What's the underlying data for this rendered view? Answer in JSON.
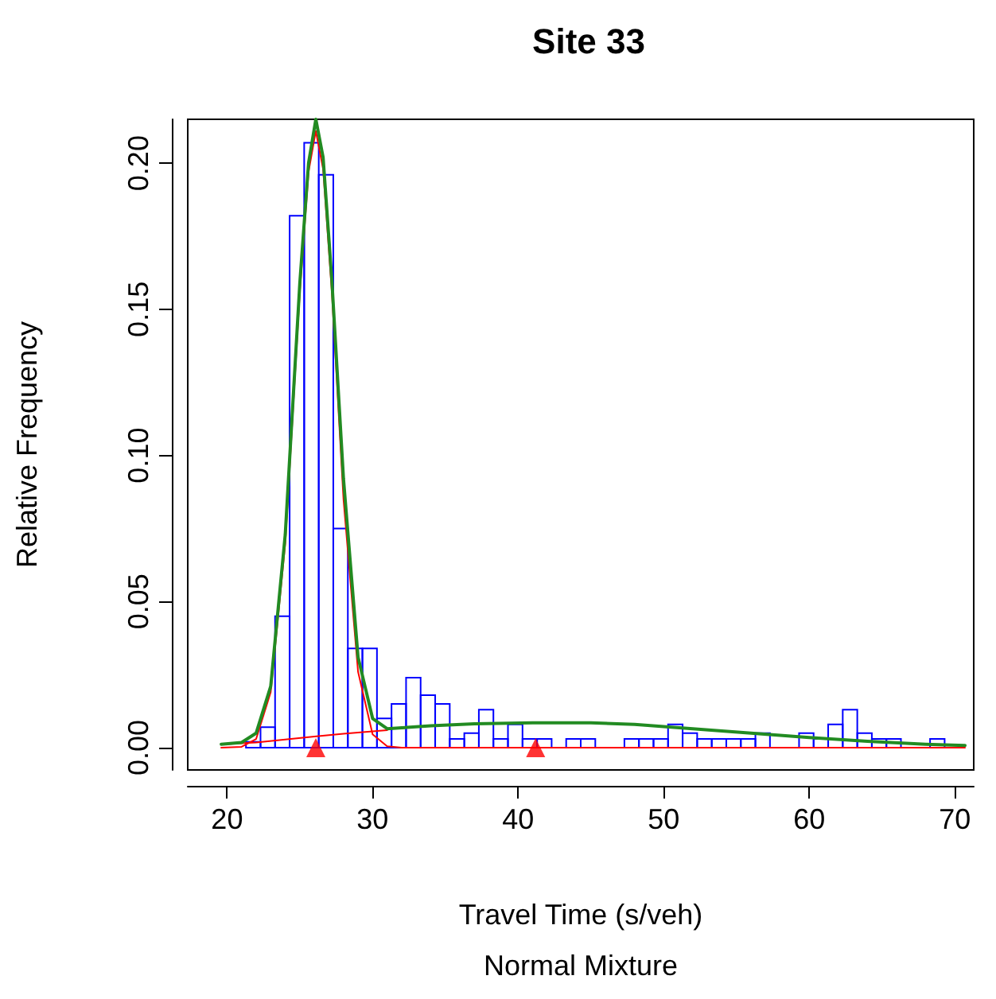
{
  "chart_data": {
    "type": "histogram",
    "title": "Site 33",
    "xlabel": "Travel Time (s/veh)",
    "ylabel": "Relative Frequency",
    "annotations": [
      "Normal Mixture"
    ],
    "bins": [
      21.3,
      22.3,
      23.3,
      24.3,
      25.3,
      26.3,
      27.3,
      28.3,
      29.3,
      30.3,
      31.3,
      32.3,
      33.3,
      34.3,
      35.3,
      36.3,
      37.3,
      38.3,
      39.3,
      40.3,
      41.3,
      42.3,
      43.3,
      44.3,
      45.3,
      46.3,
      47.3,
      48.3,
      49.3,
      50.3,
      51.3,
      52.3,
      53.3,
      54.3,
      55.3,
      56.3,
      57.3,
      58.3,
      59.3,
      60.3,
      61.3,
      62.3,
      63.3,
      64.3,
      65.3,
      66.3,
      67.3,
      68.3,
      69.3
    ],
    "values": [
      0.002,
      0.007,
      0.045,
      0.182,
      0.207,
      0.196,
      0.075,
      0.034,
      0.034,
      0.01,
      0.015,
      0.024,
      0.018,
      0.015,
      0.003,
      0.005,
      0.013,
      0.003,
      0.008,
      0.003,
      0.003,
      0,
      0.003,
      0.003,
      0,
      0,
      0.003,
      0.003,
      0.003,
      0.008,
      0.005,
      0.003,
      0.003,
      0.003,
      0.003,
      0.005,
      0,
      0,
      0.005,
      0.003,
      0.008,
      0.013,
      0.005,
      0.003,
      0.003,
      0,
      0,
      0.003
    ],
    "color": "#0000ff",
    "series": [
      {
        "type": "line",
        "color": "#ff0000",
        "x": [
          19.6,
          21,
          22,
          23,
          24,
          25,
          25.6,
          26.1,
          26.6,
          27.2,
          28,
          29,
          30,
          31,
          32,
          40,
          50,
          60,
          70.7
        ],
        "values": [
          0,
          0.0003,
          0.003,
          0.019,
          0.07,
          0.156,
          0.197,
          0.211,
          0.198,
          0.156,
          0.085,
          0.026,
          0.0046,
          0.0005,
          0,
          0,
          0,
          0,
          0
        ]
      },
      {
        "type": "line",
        "color": "#ff0000",
        "x": [
          19.6,
          22,
          24,
          26,
          28,
          30,
          31
        ],
        "values": [
          0.0012,
          0.0018,
          0.0028,
          0.0038,
          0.0048,
          0.0056,
          0.006
        ]
      },
      {
        "type": "line",
        "color": "#228b22",
        "x": [
          19.6,
          21,
          22,
          23,
          24,
          25,
          25.6,
          26.1,
          26.6,
          27.2,
          28,
          29,
          30,
          31,
          32,
          34,
          37,
          41,
          45,
          48,
          52,
          56,
          60,
          64,
          68,
          70.7
        ],
        "values": [
          0.0012,
          0.0018,
          0.005,
          0.021,
          0.073,
          0.159,
          0.2,
          0.215,
          0.202,
          0.16,
          0.092,
          0.031,
          0.01,
          0.0065,
          0.0068,
          0.0075,
          0.0082,
          0.0085,
          0.0085,
          0.008,
          0.0065,
          0.005,
          0.0035,
          0.0022,
          0.0012,
          0.0008
        ]
      },
      {
        "type": "scatter",
        "color": "#ff0000",
        "marker": "triangle",
        "x": [
          26.1,
          41.2
        ],
        "values": [
          0,
          0
        ]
      }
    ],
    "xlim": [
      17.3,
      71.3
    ],
    "ylim": [
      -0.0076,
      0.215
    ],
    "xticks": [
      20,
      30,
      40,
      50,
      60,
      70
    ],
    "yticks": [
      {
        "value": 0,
        "label": "0.00"
      },
      {
        "value": 0.05,
        "label": "0.05"
      },
      {
        "value": 0.1,
        "label": "0.10"
      },
      {
        "value": 0.15,
        "label": "0.15"
      },
      {
        "value": 0.2,
        "label": "0.20"
      }
    ],
    "grid": false,
    "line_style": "solid"
  }
}
